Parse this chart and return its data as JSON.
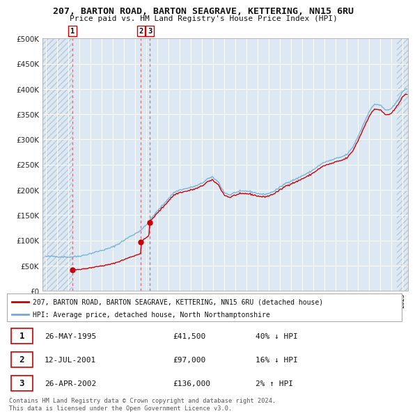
{
  "title": "207, BARTON ROAD, BARTON SEAGRAVE, KETTERING, NN15 6RU",
  "subtitle": "Price paid vs. HM Land Registry's House Price Index (HPI)",
  "background_color": "#ffffff",
  "plot_bg_color": "#dce9f5",
  "grid_color": "#ffffff",
  "legend_line1": "207, BARTON ROAD, BARTON SEAGRAVE, KETTERING, NN15 6RU (detached house)",
  "legend_line2": "HPI: Average price, detached house, North Northamptonshire",
  "footer": "Contains HM Land Registry data © Crown copyright and database right 2024.\nThis data is licensed under the Open Government Licence v3.0.",
  "sale_dates_num": [
    1995.397,
    2001.53,
    2002.319
  ],
  "sale_prices": [
    41500,
    97000,
    136000
  ],
  "sale_labels": [
    "1",
    "2",
    "3"
  ],
  "sale_info": [
    {
      "label": "1",
      "date": "26-MAY-1995",
      "price": "£41,500",
      "hpi": "40% ↓ HPI"
    },
    {
      "label": "2",
      "date": "12-JUL-2001",
      "price": "£97,000",
      "hpi": "16% ↓ HPI"
    },
    {
      "label": "3",
      "date": "26-APR-2002",
      "price": "£136,000",
      "hpi": "2% ↑ HPI"
    }
  ],
  "hpi_color": "#6baed6",
  "sale_color": "#cc0000",
  "vline_color": "#d44",
  "ylim": [
    0,
    500000
  ],
  "yticks": [
    0,
    50000,
    100000,
    150000,
    200000,
    250000,
    300000,
    350000,
    400000,
    450000,
    500000
  ],
  "xlim_start": 1992.7,
  "xlim_end": 2025.5
}
